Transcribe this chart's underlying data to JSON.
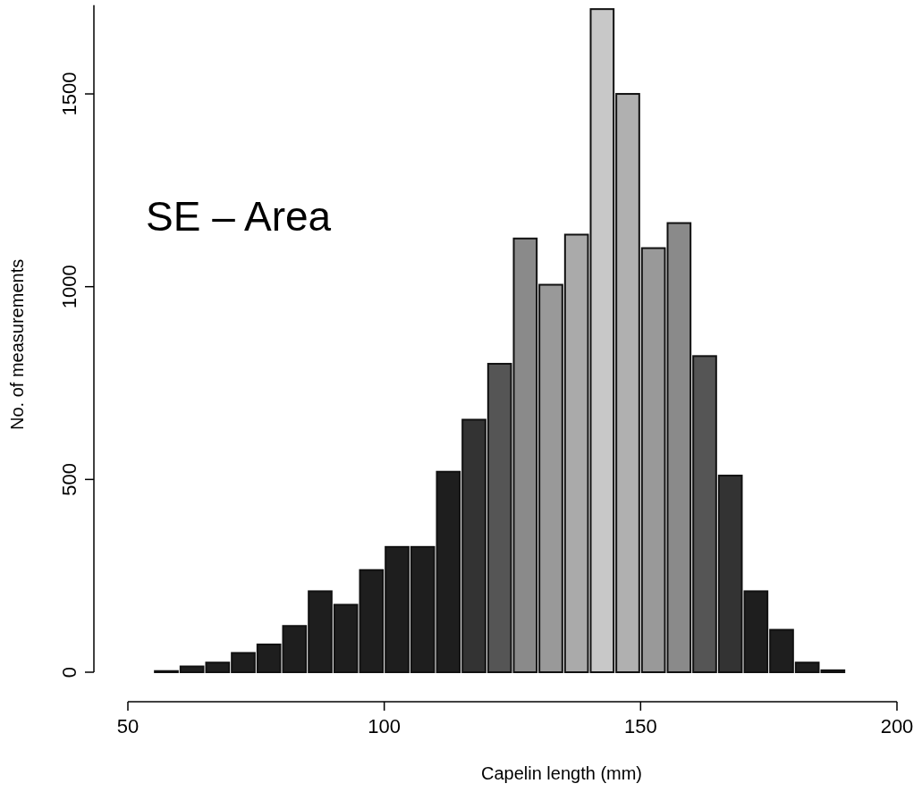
{
  "chart_data": {
    "type": "histogram",
    "xlabel": "Capelin length (mm)",
    "ylabel": "No. of measurements",
    "annotations": [
      "SE – Area"
    ],
    "bins": [
      55,
      60,
      65,
      70,
      75,
      80,
      85,
      90,
      95,
      100,
      105,
      110,
      115,
      120,
      125,
      130,
      135,
      140,
      145,
      150,
      155,
      160,
      165,
      170,
      175,
      180,
      185,
      190
    ],
    "values": [
      3,
      15,
      25,
      50,
      72,
      120,
      210,
      175,
      265,
      325,
      325,
      520,
      655,
      800,
      1125,
      1005,
      1135,
      1720,
      1500,
      1100,
      1165,
      820,
      510,
      210,
      110,
      25,
      5
    ],
    "colors": [
      "#1e1e1e",
      "#1e1e1e",
      "#1e1e1e",
      "#1e1e1e",
      "#1e1e1e",
      "#1e1e1e",
      "#1e1e1e",
      "#1e1e1e",
      "#1e1e1e",
      "#1e1e1e",
      "#1e1e1e",
      "#1e1e1e",
      "#333333",
      "#555555",
      "#8a8a8a",
      "#999999",
      "#aaaaaa",
      "#c8c8c8",
      "#b0b0b0",
      "#999999",
      "#8a8a8a",
      "#555555",
      "#333333",
      "#1e1e1e",
      "#1e1e1e",
      "#1e1e1e",
      "#1e1e1e"
    ],
    "xlim": [
      50,
      200
    ],
    "xticks": [
      50,
      100,
      150,
      200
    ],
    "ylim": [
      0,
      1730
    ],
    "yticks": [
      0,
      500,
      1000,
      1500
    ]
  }
}
